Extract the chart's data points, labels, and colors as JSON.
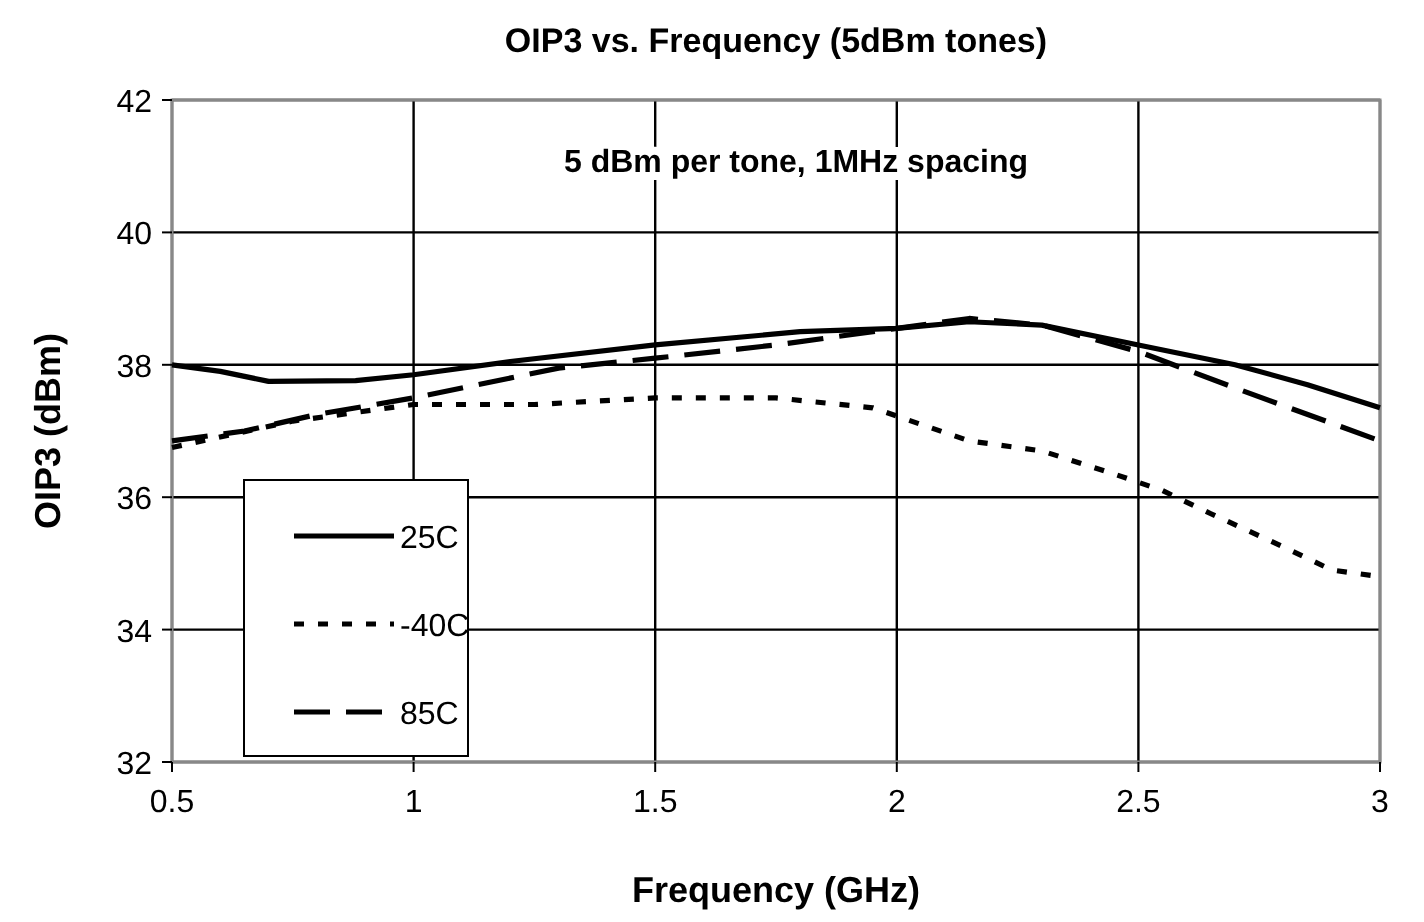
{
  "chart_data": {
    "type": "line",
    "title": "OIP3 vs. Frequency (5dBm tones)",
    "xlabel": "Frequency (GHz)",
    "ylabel": "OIP3 (dBm)",
    "xlim": [
      0.5,
      3
    ],
    "xticks": [
      0.5,
      1,
      1.5,
      2,
      2.5,
      3
    ],
    "ylim": [
      32,
      42
    ],
    "yticks": [
      32,
      34,
      36,
      38,
      40,
      42
    ],
    "grid": true,
    "legend": "bottom left",
    "annotations": [
      "5 dBm per tone, 1MHz spacing"
    ],
    "series": [
      {
        "name": "25C",
        "color": "#000000",
        "line_style": "solid",
        "x": [
          0.5,
          0.6,
          0.7,
          0.88,
          1.0,
          1.2,
          1.5,
          1.8,
          2.0,
          2.15,
          2.3,
          2.5,
          2.7,
          2.85,
          3.0
        ],
        "values": [
          38.0,
          37.9,
          37.75,
          37.76,
          37.85,
          38.05,
          38.3,
          38.5,
          38.55,
          38.65,
          38.6,
          38.3,
          38.0,
          37.7,
          37.35
        ]
      },
      {
        "name": "-40C",
        "color": "#000000",
        "line_style": "dotted",
        "x": [
          0.5,
          0.75,
          1.0,
          1.25,
          1.5,
          1.75,
          1.95,
          2.05,
          2.15,
          2.3,
          2.45,
          2.55,
          2.65,
          2.8,
          2.9,
          3.0
        ],
        "values": [
          36.75,
          37.15,
          37.4,
          37.4,
          37.5,
          37.5,
          37.35,
          37.1,
          36.85,
          36.7,
          36.35,
          36.1,
          35.75,
          35.25,
          34.9,
          34.8
        ]
      },
      {
        "name": "85C",
        "color": "#000000",
        "line_style": "dashed",
        "x": [
          0.5,
          0.65,
          0.8,
          1.0,
          1.3,
          1.5,
          1.75,
          2.0,
          2.15,
          2.3,
          2.5,
          2.7,
          3.0
        ],
        "values": [
          36.85,
          37.0,
          37.25,
          37.5,
          37.95,
          38.1,
          38.3,
          38.55,
          38.7,
          38.6,
          38.2,
          37.65,
          36.85
        ]
      }
    ]
  }
}
